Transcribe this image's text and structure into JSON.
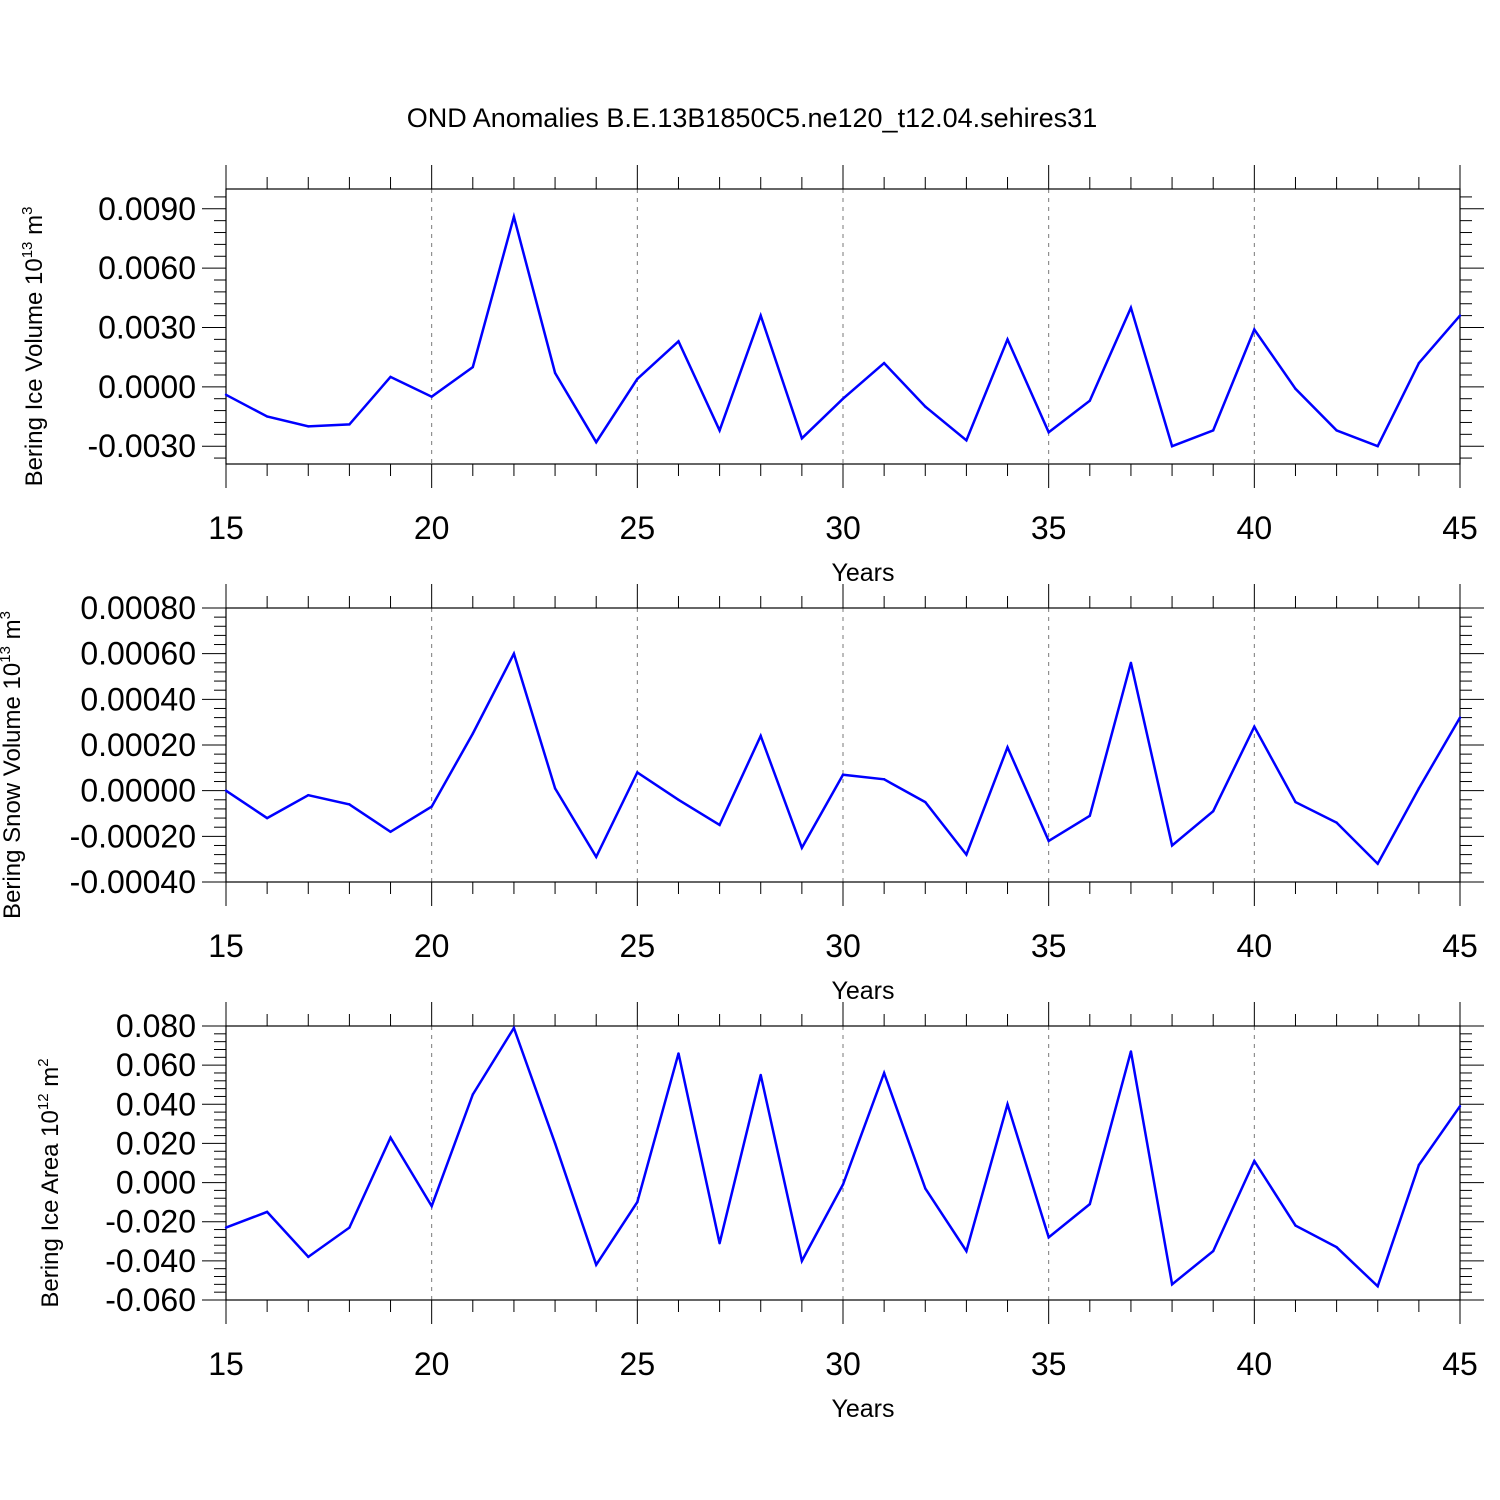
{
  "title": "OND Anomalies B.E.13B1850C5.ne120_t12.04.sehires31",
  "colors": {
    "series": "#0000ff",
    "axis": "#000000",
    "grid": "#7a7a7a"
  },
  "chart_data": [
    {
      "type": "line",
      "xlabel": "Years",
      "ylabel": {
        "text": "Bering Ice Volume 10",
        "exponent": "13",
        "unit": " m",
        "unit_exponent": "3"
      },
      "xlim": [
        15,
        45
      ],
      "ylim": [
        -0.0039,
        0.01
      ],
      "x_ticks": [
        15,
        20,
        25,
        30,
        35,
        40,
        45
      ],
      "x_tick_labels": [
        "15",
        "20",
        "25",
        "30",
        "35",
        "40",
        "45"
      ],
      "y_ticks": [
        -0.003,
        0.0,
        0.003,
        0.006,
        0.009
      ],
      "y_tick_labels": [
        "-0.0030",
        "0.0000",
        "0.0030",
        "0.0060",
        "0.0090"
      ],
      "y_minor_step": 0.0006,
      "grid": "x-dashed",
      "x": [
        15,
        16,
        17,
        18,
        19,
        20,
        21,
        22,
        23,
        24,
        25,
        26,
        27,
        28,
        29,
        30,
        31,
        32,
        33,
        34,
        35,
        36,
        37,
        38,
        39,
        40,
        41,
        42,
        43,
        44,
        45
      ],
      "y": [
        -0.0004,
        -0.0015,
        -0.002,
        -0.0019,
        0.0005,
        -0.0005,
        0.001,
        0.0086,
        0.0007,
        -0.0028,
        0.0004,
        0.0023,
        -0.0022,
        0.0036,
        -0.0026,
        -0.0006,
        0.0012,
        -0.001,
        -0.0027,
        0.0024,
        -0.0023,
        -0.0007,
        0.004,
        -0.003,
        -0.0022,
        0.0029,
        -0.0001,
        -0.0022,
        -0.003,
        0.0012,
        0.0036
      ]
    },
    {
      "type": "line",
      "xlabel": "Years",
      "ylabel": {
        "text": "Bering Snow Volume 10",
        "exponent": "13",
        "unit": " m",
        "unit_exponent": "3"
      },
      "xlim": [
        15,
        45
      ],
      "ylim": [
        -0.0004,
        0.0008
      ],
      "x_ticks": [
        15,
        20,
        25,
        30,
        35,
        40,
        45
      ],
      "x_tick_labels": [
        "15",
        "20",
        "25",
        "30",
        "35",
        "40",
        "45"
      ],
      "y_ticks": [
        -0.0004,
        -0.0002,
        0.0,
        0.0002,
        0.0004,
        0.0006,
        0.0008
      ],
      "y_tick_labels": [
        "-0.00040",
        "-0.00020",
        "0.00000",
        "0.00020",
        "0.00040",
        "0.00060",
        "0.00080"
      ],
      "y_minor_step": 4e-05,
      "grid": "x-dashed",
      "x": [
        15,
        16,
        17,
        18,
        19,
        20,
        21,
        22,
        23,
        24,
        25,
        26,
        27,
        28,
        29,
        30,
        31,
        32,
        33,
        34,
        35,
        36,
        37,
        38,
        39,
        40,
        41,
        42,
        43,
        44,
        45
      ],
      "y": [
        0.0,
        -0.00012,
        -2e-05,
        -6e-05,
        -0.00018,
        -7e-05,
        0.00025,
        0.0006,
        1e-05,
        -0.00029,
        8e-05,
        -4e-05,
        -0.00015,
        0.00024,
        -0.00025,
        7e-05,
        5e-05,
        -5e-05,
        -0.00028,
        0.00019,
        -0.00022,
        -0.00011,
        0.00056,
        -0.00024,
        -9e-05,
        0.00028,
        -5e-05,
        -0.00014,
        -0.00032,
        1e-05,
        0.00032
      ]
    },
    {
      "type": "line",
      "xlabel": "Years",
      "ylabel": {
        "text": "Bering Ice Area 10",
        "exponent": "12",
        "unit": " m",
        "unit_exponent": "2"
      },
      "xlim": [
        15,
        45
      ],
      "ylim": [
        -0.06,
        0.08
      ],
      "x_ticks": [
        15,
        20,
        25,
        30,
        35,
        40,
        45
      ],
      "x_tick_labels": [
        "15",
        "20",
        "25",
        "30",
        "35",
        "40",
        "45"
      ],
      "y_ticks": [
        -0.06,
        -0.04,
        -0.02,
        0.0,
        0.02,
        0.04,
        0.06,
        0.08
      ],
      "y_tick_labels": [
        "-0.060",
        "-0.040",
        "-0.020",
        "0.000",
        "0.020",
        "0.040",
        "0.060",
        "0.080"
      ],
      "y_minor_step": 0.004,
      "grid": "x-dashed",
      "x": [
        15,
        16,
        17,
        18,
        19,
        20,
        21,
        22,
        23,
        24,
        25,
        26,
        27,
        28,
        29,
        30,
        31,
        32,
        33,
        34,
        35,
        36,
        37,
        38,
        39,
        40,
        41,
        42,
        43,
        44,
        45
      ],
      "y": [
        -0.023,
        -0.015,
        -0.038,
        -0.023,
        0.023,
        -0.012,
        0.045,
        0.079,
        0.02,
        -0.042,
        -0.01,
        0.066,
        -0.031,
        0.055,
        -0.04,
        -0.001,
        0.056,
        -0.003,
        -0.035,
        0.04,
        -0.028,
        -0.011,
        0.067,
        -0.052,
        -0.035,
        0.011,
        -0.022,
        -0.033,
        -0.053,
        0.009,
        0.039
      ]
    }
  ]
}
